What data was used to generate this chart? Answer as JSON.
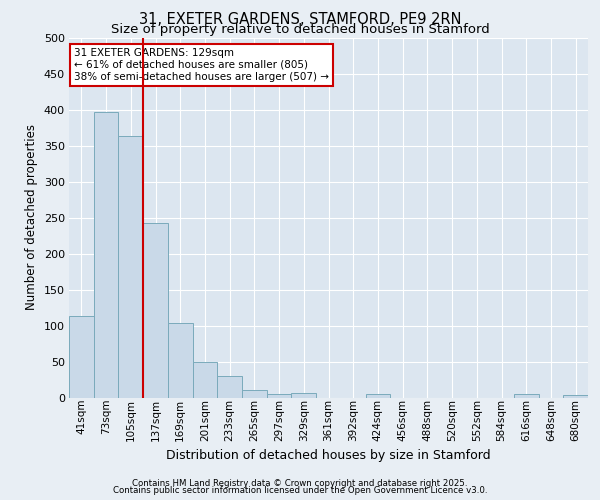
{
  "title_line1": "31, EXETER GARDENS, STAMFORD, PE9 2RN",
  "title_line2": "Size of property relative to detached houses in Stamford",
  "xlabel": "Distribution of detached houses by size in Stamford",
  "ylabel": "Number of detached properties",
  "footer_line1": "Contains HM Land Registry data © Crown copyright and database right 2025.",
  "footer_line2": "Contains public sector information licensed under the Open Government Licence v3.0.",
  "bar_labels": [
    "41sqm",
    "73sqm",
    "105sqm",
    "137sqm",
    "169sqm",
    "201sqm",
    "233sqm",
    "265sqm",
    "297sqm",
    "329sqm",
    "361sqm",
    "392sqm",
    "424sqm",
    "456sqm",
    "488sqm",
    "520sqm",
    "552sqm",
    "584sqm",
    "616sqm",
    "648sqm",
    "680sqm"
  ],
  "bar_values": [
    113,
    397,
    363,
    242,
    104,
    50,
    30,
    10,
    5,
    6,
    0,
    0,
    5,
    0,
    0,
    0,
    0,
    0,
    5,
    0,
    3
  ],
  "bar_color": "#c9d9e8",
  "bar_edge_color": "#7aaabb",
  "bg_color": "#e8eef4",
  "plot_bg_color": "#dce6f0",
  "grid_color": "#ffffff",
  "vline_color": "#cc0000",
  "annotation_text": "31 EXETER GARDENS: 129sqm\n← 61% of detached houses are smaller (805)\n38% of semi-detached houses are larger (507) →",
  "annotation_box_color": "#cc0000",
  "ylim": [
    0,
    500
  ],
  "yticks": [
    0,
    50,
    100,
    150,
    200,
    250,
    300,
    350,
    400,
    450,
    500
  ]
}
